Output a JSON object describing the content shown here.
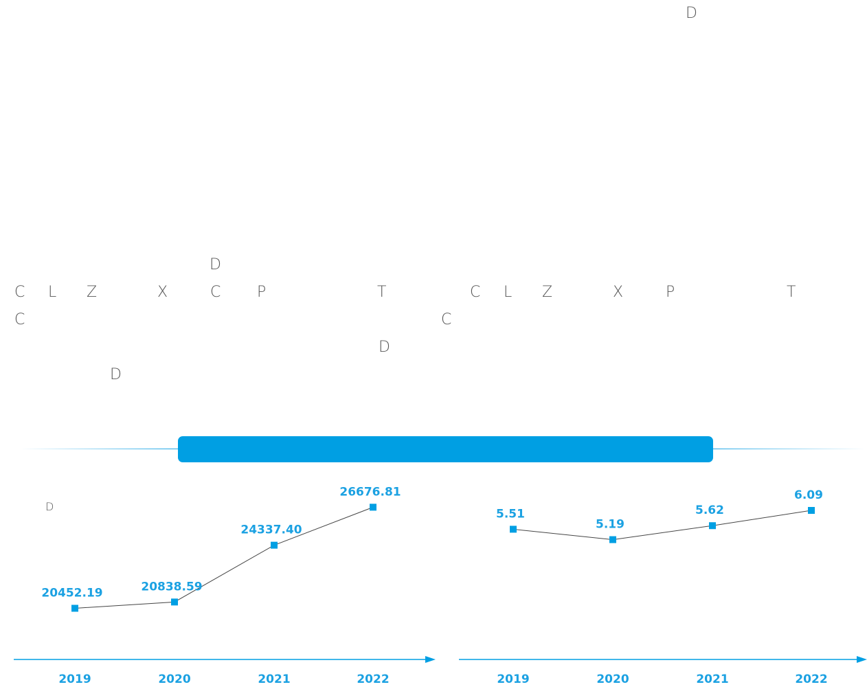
{
  "text_fragments": {
    "f1": "D",
    "f2": "D",
    "f3": "C",
    "f4": "L",
    "f5": "Z",
    "f6": "X",
    "f7": "C",
    "f8": "P",
    "f9": "T",
    "f10": "C",
    "f11": "L",
    "f12": "Z",
    "f13": "X",
    "f14": "P",
    "f15": "T",
    "f16": "C",
    "f17": "C",
    "f18": "D",
    "f19": "D",
    "f20": "D"
  },
  "colors": {
    "accent": "#009fe3",
    "label": "#1ba1e2",
    "line": "#444444",
    "text": "#555555"
  },
  "chart_data": [
    {
      "type": "line",
      "x": [
        "2019",
        "2020",
        "2021",
        "2022"
      ],
      "values": [
        20452.19,
        20838.59,
        24337.4,
        26676.81
      ],
      "value_labels": [
        "20452.19",
        "20838.59",
        "24337.40",
        "26676.81"
      ],
      "ylim": [
        17300,
        28300
      ],
      "grid": false,
      "legend": "none"
    },
    {
      "type": "line",
      "x": [
        "2019",
        "2020",
        "2021",
        "2022"
      ],
      "values": [
        5.51,
        5.19,
        5.62,
        6.09
      ],
      "value_labels": [
        "5.51",
        "5.19",
        "5.62",
        "6.09"
      ],
      "ylim": [
        1.5,
        7.0
      ],
      "grid": false,
      "legend": "none"
    }
  ]
}
